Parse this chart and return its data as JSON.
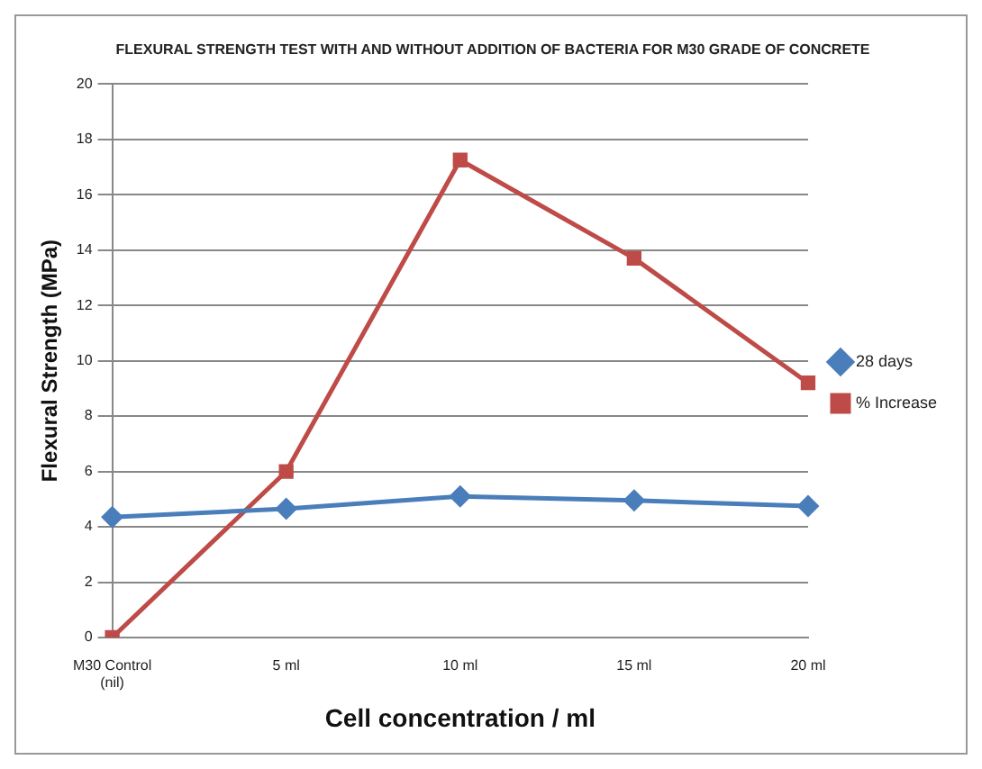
{
  "chart_data": {
    "type": "line",
    "title": "FLEXURAL STRENGTH TEST WITH AND WITHOUT ADDITION OF BACTERIA FOR M30 GRADE OF CONCRETE",
    "xlabel": "Cell concentration / ml",
    "ylabel": "Flexural Strength (MPa)",
    "categories": [
      "M30 Control (nil)",
      "5 ml",
      "10 ml",
      "15 ml",
      "20 ml"
    ],
    "series": [
      {
        "name": "28 days",
        "color": "#4a7ebb",
        "marker": "diamond",
        "values": [
          4.35,
          4.65,
          5.1,
          4.95,
          4.75
        ]
      },
      {
        "name": "% Increase",
        "color": "#be4b48",
        "marker": "square",
        "values": [
          0,
          6.0,
          17.25,
          13.7,
          9.2
        ]
      }
    ],
    "ylim": [
      0,
      20
    ],
    "yticks": [
      0,
      2,
      4,
      6,
      8,
      10,
      12,
      14,
      16,
      18,
      20
    ],
    "grid": "y",
    "legend": "right",
    "line_style": "solid"
  }
}
